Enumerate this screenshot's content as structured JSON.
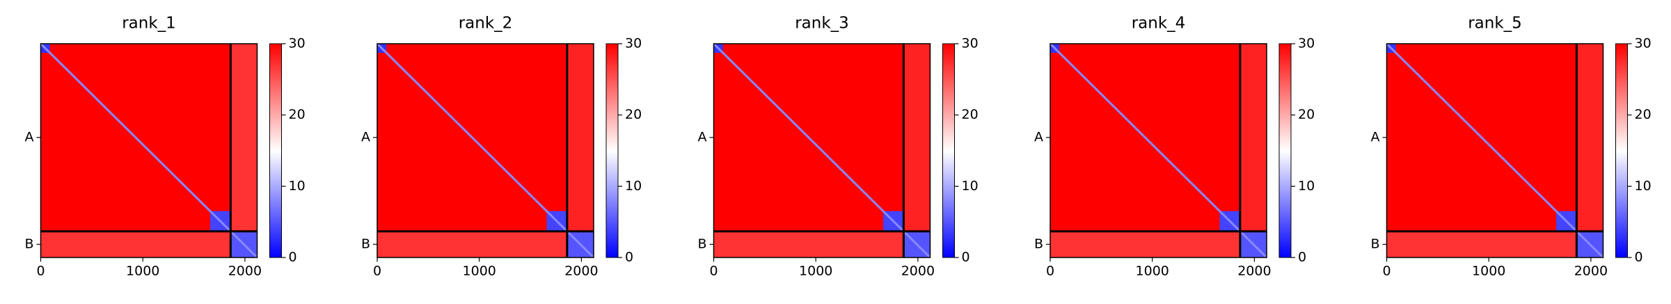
{
  "chart_data": [
    {
      "type": "heatmap",
      "title": "rank_1",
      "xlim": [
        0,
        2120
      ],
      "xticks": [
        0,
        1000,
        2000
      ],
      "ylim": [
        2120,
        0
      ],
      "yticks": [
        {
          "value": 930,
          "label": "A"
        },
        {
          "value": 1990,
          "label": "B"
        }
      ],
      "chain_breaks": [
        1860
      ],
      "colormap": "bwr",
      "background_value": 30,
      "diagonal_value": 8,
      "blocks": [
        {
          "x": [
            0,
            1860
          ],
          "y": [
            1870,
            2120
          ],
          "value": 27
        },
        {
          "x": [
            1870,
            2120
          ],
          "y": [
            0,
            1860
          ],
          "value": 27
        },
        {
          "x": [
            0,
            90
          ],
          "y": [
            0,
            90
          ],
          "value": 3
        },
        {
          "x": [
            1660,
            1860
          ],
          "y": [
            1660,
            1860
          ],
          "value": 4
        },
        {
          "x": [
            1860,
            2120
          ],
          "y": [
            1860,
            2120
          ],
          "value": 5
        }
      ],
      "colorbar": {
        "lim": [
          0,
          30
        ],
        "ticks": [
          0,
          10,
          20,
          30
        ]
      }
    },
    {
      "type": "heatmap",
      "title": "rank_2",
      "xlim": [
        0,
        2120
      ],
      "xticks": [
        0,
        1000,
        2000
      ],
      "ylim": [
        2120,
        0
      ],
      "yticks": [
        {
          "value": 930,
          "label": "A"
        },
        {
          "value": 1990,
          "label": "B"
        }
      ],
      "chain_breaks": [
        1860
      ],
      "colormap": "bwr",
      "background_value": 30,
      "diagonal_value": 8,
      "blocks": [
        {
          "x": [
            0,
            1860
          ],
          "y": [
            1870,
            2120
          ],
          "value": 27
        },
        {
          "x": [
            1870,
            2120
          ],
          "y": [
            0,
            1860
          ],
          "value": 28
        },
        {
          "x": [
            0,
            90
          ],
          "y": [
            0,
            90
          ],
          "value": 3
        },
        {
          "x": [
            1660,
            1860
          ],
          "y": [
            1660,
            1860
          ],
          "value": 4
        },
        {
          "x": [
            1860,
            2120
          ],
          "y": [
            1860,
            2120
          ],
          "value": 5
        }
      ],
      "colorbar": {
        "lim": [
          0,
          30
        ],
        "ticks": [
          0,
          10,
          20,
          30
        ]
      }
    },
    {
      "type": "heatmap",
      "title": "rank_3",
      "xlim": [
        0,
        2120
      ],
      "xticks": [
        0,
        1000,
        2000
      ],
      "ylim": [
        2120,
        0
      ],
      "yticks": [
        {
          "value": 930,
          "label": "A"
        },
        {
          "value": 1990,
          "label": "B"
        }
      ],
      "chain_breaks": [
        1860
      ],
      "colormap": "bwr",
      "background_value": 30,
      "diagonal_value": 8,
      "blocks": [
        {
          "x": [
            0,
            1860
          ],
          "y": [
            1870,
            2120
          ],
          "value": 27
        },
        {
          "x": [
            1870,
            2120
          ],
          "y": [
            0,
            1860
          ],
          "value": 28
        },
        {
          "x": [
            0,
            90
          ],
          "y": [
            0,
            90
          ],
          "value": 3
        },
        {
          "x": [
            1660,
            1860
          ],
          "y": [
            1660,
            1860
          ],
          "value": 4
        },
        {
          "x": [
            1860,
            2120
          ],
          "y": [
            1860,
            2120
          ],
          "value": 5
        }
      ],
      "colorbar": {
        "lim": [
          0,
          30
        ],
        "ticks": [
          0,
          10,
          20,
          30
        ]
      }
    },
    {
      "type": "heatmap",
      "title": "rank_4",
      "xlim": [
        0,
        2120
      ],
      "xticks": [
        0,
        1000,
        2000
      ],
      "ylim": [
        2120,
        0
      ],
      "yticks": [
        {
          "value": 930,
          "label": "A"
        },
        {
          "value": 1990,
          "label": "B"
        }
      ],
      "chain_breaks": [
        1860
      ],
      "colormap": "bwr",
      "background_value": 30,
      "diagonal_value": 8,
      "blocks": [
        {
          "x": [
            0,
            1860
          ],
          "y": [
            1870,
            2120
          ],
          "value": 27
        },
        {
          "x": [
            1870,
            2120
          ],
          "y": [
            0,
            1860
          ],
          "value": 28
        },
        {
          "x": [
            0,
            90
          ],
          "y": [
            0,
            90
          ],
          "value": 3
        },
        {
          "x": [
            1660,
            1860
          ],
          "y": [
            1660,
            1860
          ],
          "value": 4
        },
        {
          "x": [
            1860,
            2120
          ],
          "y": [
            1860,
            2120
          ],
          "value": 5
        }
      ],
      "colorbar": {
        "lim": [
          0,
          30
        ],
        "ticks": [
          0,
          10,
          20,
          30
        ]
      }
    },
    {
      "type": "heatmap",
      "title": "rank_5",
      "xlim": [
        0,
        2120
      ],
      "xticks": [
        0,
        1000,
        2000
      ],
      "ylim": [
        2120,
        0
      ],
      "yticks": [
        {
          "value": 930,
          "label": "A"
        },
        {
          "value": 1990,
          "label": "B"
        }
      ],
      "chain_breaks": [
        1860
      ],
      "colormap": "bwr",
      "background_value": 30,
      "diagonal_value": 8,
      "blocks": [
        {
          "x": [
            0,
            1860
          ],
          "y": [
            1870,
            2120
          ],
          "value": 27
        },
        {
          "x": [
            1870,
            2120
          ],
          "y": [
            0,
            1860
          ],
          "value": 28
        },
        {
          "x": [
            0,
            90
          ],
          "y": [
            0,
            90
          ],
          "value": 3
        },
        {
          "x": [
            1660,
            1860
          ],
          "y": [
            1660,
            1860
          ],
          "value": 4
        },
        {
          "x": [
            1860,
            2120
          ],
          "y": [
            1860,
            2120
          ],
          "value": 5
        }
      ],
      "colorbar": {
        "lim": [
          0,
          30
        ],
        "ticks": [
          0,
          10,
          20,
          30
        ]
      }
    }
  ]
}
